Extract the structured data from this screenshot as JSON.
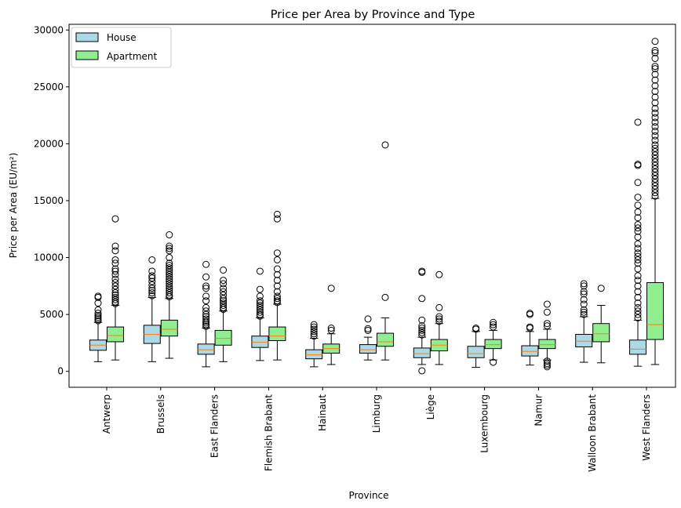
{
  "chart_data": {
    "type": "box",
    "title": "Price per Area by Province and Type",
    "xlabel": "Province",
    "ylabel": "Price per Area (EU/m²)",
    "ylim": [
      -1400,
      30500
    ],
    "yticks": [
      0,
      5000,
      10000,
      15000,
      20000,
      25000,
      30000
    ],
    "grid": false,
    "legend_position": "top-left",
    "categories": [
      "Antwerp",
      "Brussels",
      "East Flanders",
      "Flemish Brabant",
      "Hainaut",
      "Limburg",
      "Liège",
      "Luxembourg",
      "Namur",
      "Walloon Brabant",
      "West Flanders"
    ],
    "series": [
      {
        "name": "House",
        "color": "#add8e6",
        "boxes": [
          {
            "whislo": 850,
            "q1": 1850,
            "med": 2300,
            "q3": 2750,
            "whishi": 4300,
            "fliers": [
              4450,
              4600,
              4750,
              4900,
              5100,
              5400,
              6000,
              6500,
              6600
            ]
          },
          {
            "whislo": 850,
            "q1": 2450,
            "med": 3250,
            "q3": 4050,
            "whishi": 6500,
            "fliers": [
              6650,
              6900,
              7100,
              7300,
              7600,
              7900,
              8200,
              8400,
              8800,
              9800
            ]
          },
          {
            "whislo": 400,
            "q1": 1500,
            "med": 1900,
            "q3": 2400,
            "whishi": 3800,
            "fliers": [
              3950,
              4100,
              4250,
              4400,
              4600,
              4800,
              5000,
              5300,
              5600,
              6200,
              6600,
              7300,
              7500,
              8300,
              9400
            ]
          },
          {
            "whislo": 950,
            "q1": 2100,
            "med": 2550,
            "q3": 3100,
            "whishi": 4700,
            "fliers": [
              4850,
              5000,
              5200,
              5400,
              5600,
              5800,
              6000,
              6200,
              6600,
              7200,
              8800
            ]
          },
          {
            "whislo": 400,
            "q1": 1100,
            "med": 1450,
            "q3": 1900,
            "whishi": 2900,
            "fliers": [
              3100,
              3300,
              3500,
              3700,
              3900,
              4100
            ]
          },
          {
            "whislo": 1000,
            "q1": 1600,
            "med": 1900,
            "q3": 2350,
            "whishi": 3000,
            "fliers": [
              3600,
              3750,
              4600
            ]
          },
          {
            "whislo": 600,
            "q1": 1200,
            "med": 1550,
            "q3": 2050,
            "whishi": 3000,
            "fliers": [
              50,
              3200,
              3400,
              3600,
              3800,
              4000,
              4500,
              6400,
              8700,
              8800
            ]
          },
          {
            "whislo": 350,
            "q1": 1200,
            "med": 1550,
            "q3": 2200,
            "whishi": 3500,
            "fliers": [
              3700,
              3800
            ]
          },
          {
            "whislo": 550,
            "q1": 1350,
            "med": 1750,
            "q3": 2250,
            "whishi": 3500,
            "fliers": [
              3800,
              3900,
              5000,
              5100
            ]
          },
          {
            "whislo": 800,
            "q1": 2150,
            "med": 2650,
            "q3": 3250,
            "whishi": 4800,
            "fliers": [
              5000,
              5200,
              5400,
              5900,
              6300,
              6800,
              7000,
              7500,
              7700
            ]
          },
          {
            "whislo": 450,
            "q1": 1500,
            "med": 1950,
            "q3": 2750,
            "whishi": 4500,
            "fliers": [
              4700,
              5000,
              5300,
              5600,
              6000,
              6500,
              7000,
              7500,
              8000,
              8400,
              9000,
              9500,
              9800,
              10100,
              10400,
              10800,
              11200,
              11800,
              12300,
              12600,
              12900,
              13500,
              14000,
              14600,
              15300,
              16600,
              18100,
              18200,
              21900
            ]
          }
        ]
      },
      {
        "name": "Apartment",
        "color": "#90ee90",
        "boxes": [
          {
            "whislo": 1000,
            "q1": 2600,
            "med": 3150,
            "q3": 3900,
            "whishi": 5800,
            "fliers": [
              5950,
              6100,
              6300,
              6500,
              6700,
              6900,
              7200,
              7500,
              7800,
              8100,
              8500,
              8800,
              9000,
              9500,
              9800,
              10600,
              11000,
              13400
            ]
          },
          {
            "whislo": 1150,
            "q1": 3100,
            "med": 3700,
            "q3": 4500,
            "whishi": 6400,
            "fliers": [
              6550,
              6700,
              6900,
              7100,
              7300,
              7500,
              7700,
              7900,
              8100,
              8300,
              8500,
              8700,
              8900,
              9100,
              9300,
              9500,
              10000,
              10600,
              10800,
              11000,
              12000
            ]
          },
          {
            "whislo": 850,
            "q1": 2300,
            "med": 2900,
            "q3": 3600,
            "whishi": 5300,
            "fliers": [
              5450,
              5600,
              5800,
              6000,
              6200,
              6400,
              6700,
              7000,
              7300,
              7700,
              8000,
              8900
            ]
          },
          {
            "whislo": 1000,
            "q1": 2700,
            "med": 3100,
            "q3": 3900,
            "whishi": 5900,
            "fliers": [
              6050,
              6200,
              6400,
              6600,
              7000,
              7500,
              8000,
              8500,
              9000,
              9800,
              10400,
              13400,
              13800
            ]
          },
          {
            "whislo": 600,
            "q1": 1600,
            "med": 2000,
            "q3": 2400,
            "whishi": 3300,
            "fliers": [
              3600,
              3800,
              7300
            ]
          },
          {
            "whislo": 1000,
            "q1": 2200,
            "med": 2600,
            "q3": 3350,
            "whishi": 4700,
            "fliers": [
              6500,
              19900
            ]
          },
          {
            "whislo": 600,
            "q1": 1800,
            "med": 2300,
            "q3": 2800,
            "whishi": 4200,
            "fliers": [
              4400,
              4600,
              4800,
              5600,
              8500
            ]
          },
          {
            "whislo": 1000,
            "q1": 2000,
            "med": 2350,
            "q3": 2800,
            "whishi": 3600,
            "fliers": [
              800,
              3900,
              4100,
              4300
            ]
          },
          {
            "whislo": 1000,
            "q1": 2000,
            "med": 2350,
            "q3": 2800,
            "whishi": 3700,
            "fliers": [
              400,
              550,
              700,
              900,
              4000,
              4200,
              5200,
              5900
            ]
          },
          {
            "whislo": 750,
            "q1": 2600,
            "med": 3300,
            "q3": 4200,
            "whishi": 5800,
            "fliers": [
              7300
            ]
          },
          {
            "whislo": 600,
            "q1": 2800,
            "med": 4100,
            "q3": 7800,
            "whishi": 15200,
            "fliers": [
              15400,
              15700,
              16000,
              16300,
              16600,
              16900,
              17200,
              17500,
              17800,
              18100,
              18400,
              18700,
              19000,
              19300,
              19600,
              19900,
              20300,
              20700,
              21100,
              21500,
              21900,
              22300,
              22700,
              23100,
              23600,
              24100,
              24600,
              25100,
              25600,
              26100,
              26600,
              26800,
              27500,
              28000,
              28200,
              29000
            ]
          }
        ]
      }
    ]
  }
}
